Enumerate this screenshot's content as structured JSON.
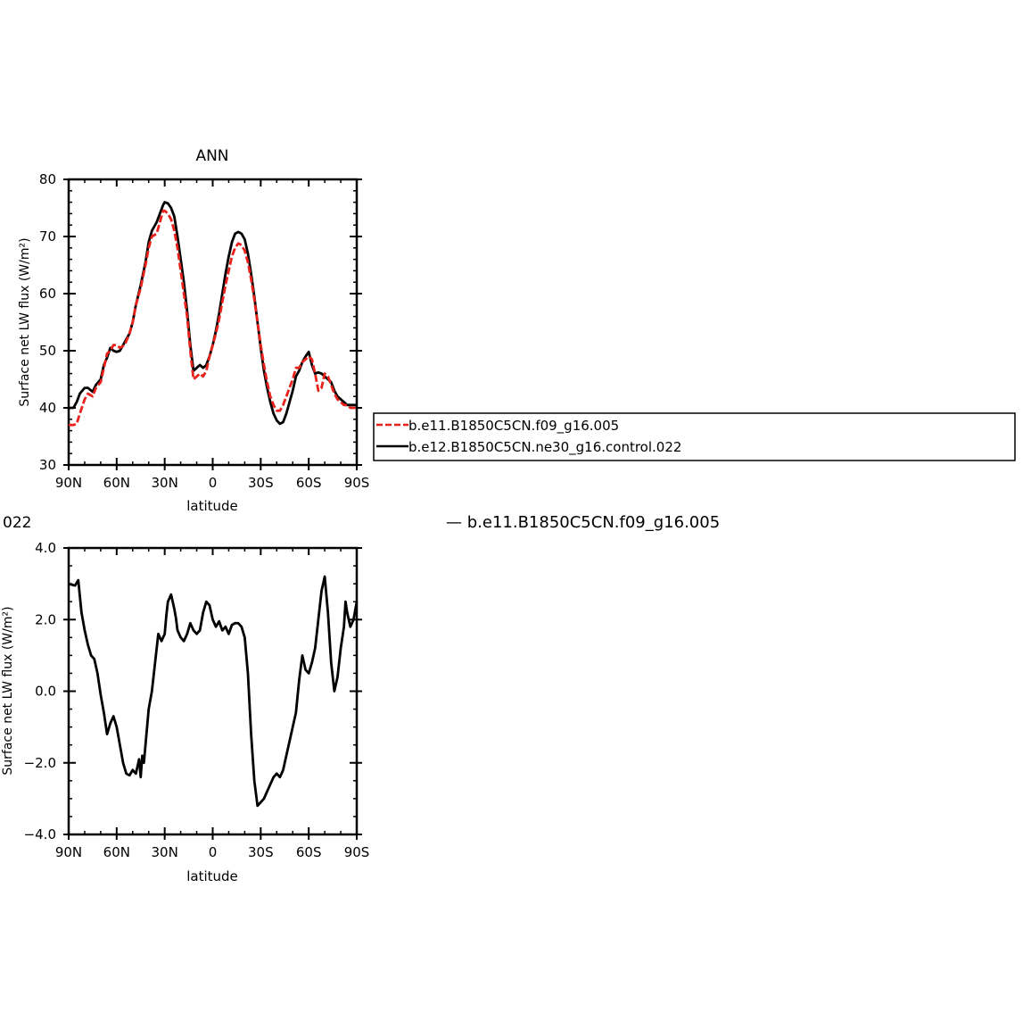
{
  "colors": {
    "control": "#000000",
    "case": "#e8211b"
  },
  "legend": {
    "items": [
      {
        "label": "b.e11.B1850C5CN.f09_g16.005",
        "style": "dashed-red"
      },
      {
        "label": "b.e12.B1850C5CN.ne30_g16.control.022",
        "style": "solid-black"
      }
    ]
  },
  "fragments": {
    "left_clipped": "022",
    "right_clipped_legend": "— b.e11.B1850C5CN.f09_g16.005"
  },
  "chart_data": [
    {
      "type": "line",
      "title": "ANN",
      "xlabel": "latitude",
      "ylabel": "Surface net LW flux (W/m²)",
      "xlim": [
        90,
        -90
      ],
      "ylim": [
        30,
        80
      ],
      "x_tick_labels": [
        "90N",
        "60N",
        "30N",
        "0",
        "30S",
        "60S",
        "90S"
      ],
      "y_tick_labels": [
        "80",
        "70",
        "60",
        "50",
        "40",
        "30"
      ],
      "x": [
        90,
        87,
        85,
        83,
        80,
        78,
        75,
        73,
        70,
        68,
        66,
        64,
        62,
        60,
        58,
        55,
        52,
        50,
        48,
        45,
        42,
        40,
        38,
        35,
        33,
        31,
        30,
        28,
        26,
        24,
        22,
        20,
        18,
        16,
        14,
        12,
        10,
        8,
        6,
        4,
        2,
        0,
        -2,
        -4,
        -6,
        -8,
        -10,
        -12,
        -14,
        -16,
        -18,
        -20,
        -22,
        -24,
        -26,
        -28,
        -30,
        -32,
        -34,
        -36,
        -38,
        -40,
        -42,
        -44,
        -46,
        -48,
        -50,
        -52,
        -54,
        -56,
        -58,
        -60,
        -62,
        -64,
        -66,
        -68,
        -70,
        -72,
        -74,
        -76,
        -78,
        -80,
        -82,
        -84,
        -86,
        -88,
        -90
      ],
      "series": [
        {
          "name": "b.e11.B1850C5CN.f09_g16.005",
          "style": "dashed-red",
          "values": [
            37.0,
            37.0,
            37.2,
            39.0,
            41.5,
            42.5,
            42.0,
            43.5,
            44.5,
            47.0,
            49.5,
            50.0,
            51.0,
            51.0,
            50.5,
            51.0,
            53.0,
            55.0,
            58.0,
            61.0,
            65.0,
            68.0,
            70.0,
            70.5,
            72.5,
            74.5,
            74.5,
            74.0,
            73.0,
            71.0,
            68.0,
            64.0,
            60.0,
            56.0,
            50.0,
            45.0,
            45.5,
            46.0,
            45.5,
            46.5,
            49.0,
            51.0,
            53.0,
            55.5,
            58.5,
            61.5,
            64.0,
            66.5,
            68.0,
            68.8,
            68.5,
            67.5,
            65.5,
            62.5,
            59.0,
            55.0,
            51.0,
            47.5,
            44.5,
            42.0,
            40.5,
            39.5,
            39.5,
            40.5,
            42.0,
            43.5,
            45.0,
            47.0,
            47.0,
            48.0,
            48.5,
            49.0,
            48.5,
            46.0,
            43.0,
            43.5,
            46.0,
            45.5,
            44.0,
            42.5,
            41.5,
            41.0,
            40.5,
            40.5,
            40.0,
            40.0,
            40.0
          ]
        },
        {
          "name": "b.e12.B1850C5CN.ne30_g16.control.022",
          "style": "solid-black",
          "values": [
            40.0,
            40.0,
            41.0,
            42.5,
            43.5,
            43.5,
            42.8,
            44.0,
            45.0,
            47.5,
            48.8,
            50.5,
            50.0,
            49.8,
            50.0,
            51.5,
            53.0,
            55.0,
            58.0,
            61.5,
            65.5,
            69.0,
            71.0,
            72.5,
            74.0,
            75.5,
            76.0,
            75.8,
            75.0,
            73.5,
            70.0,
            66.0,
            62.0,
            57.0,
            51.0,
            46.5,
            47.0,
            47.5,
            47.0,
            47.5,
            49.0,
            51.0,
            53.5,
            56.5,
            60.0,
            63.5,
            66.5,
            69.0,
            70.5,
            70.8,
            70.5,
            69.5,
            67.0,
            63.5,
            59.5,
            55.0,
            50.5,
            46.5,
            43.5,
            41.0,
            39.0,
            37.8,
            37.2,
            37.5,
            39.0,
            41.0,
            43.0,
            45.5,
            46.5,
            48.0,
            49.0,
            49.8,
            47.5,
            46.0,
            46.2,
            46.0,
            45.5,
            45.0,
            44.5,
            43.0,
            42.0,
            41.5,
            41.0,
            40.5,
            40.5,
            40.5,
            40.5
          ]
        }
      ]
    },
    {
      "type": "line",
      "title": "",
      "xlabel": "latitude",
      "ylabel": "Surface net LW flux (W/m²)",
      "xlim": [
        90,
        -90
      ],
      "ylim": [
        -4.0,
        4.0
      ],
      "x_tick_labels": [
        "90N",
        "60N",
        "30N",
        "0",
        "30S",
        "60S",
        "90S"
      ],
      "y_tick_labels": [
        "4.0",
        "2.0",
        "0.0",
        "−2.0",
        "−4.0"
      ],
      "x": [
        90,
        86,
        84,
        82,
        80,
        78,
        76,
        74,
        72,
        70,
        68,
        66,
        64,
        62,
        60,
        58,
        56,
        54,
        52,
        50,
        48,
        46,
        45,
        44,
        43,
        42,
        40,
        38,
        36,
        34,
        32,
        30,
        29,
        28,
        26,
        24,
        23,
        22,
        20,
        18,
        16,
        14,
        12,
        10,
        8,
        6,
        4,
        2,
        0,
        -2,
        -4,
        -6,
        -8,
        -10,
        -12,
        -14,
        -16,
        -18,
        -20,
        -22,
        -24,
        -26,
        -28,
        -30,
        -32,
        -34,
        -36,
        -38,
        -40,
        -42,
        -44,
        -46,
        -48,
        -50,
        -52,
        -54,
        -56,
        -58,
        -60,
        -62,
        -64,
        -66,
        -68,
        -70,
        -72,
        -74,
        -76,
        -78,
        -80,
        -82,
        -83,
        -84,
        -86,
        -88,
        -90
      ],
      "series": [
        {
          "name": "",
          "style": "solid-black",
          "values": [
            3.0,
            2.95,
            3.1,
            2.2,
            1.7,
            1.3,
            1.0,
            0.9,
            0.5,
            -0.1,
            -0.6,
            -1.2,
            -0.9,
            -0.7,
            -1.0,
            -1.5,
            -2.0,
            -2.3,
            -2.35,
            -2.2,
            -2.3,
            -1.9,
            -2.4,
            -1.8,
            -2.0,
            -1.5,
            -0.5,
            0.0,
            0.8,
            1.6,
            1.4,
            1.6,
            2.1,
            2.5,
            2.7,
            2.3,
            2.05,
            1.7,
            1.5,
            1.4,
            1.6,
            1.9,
            1.7,
            1.6,
            1.7,
            2.2,
            2.5,
            2.4,
            2.0,
            1.8,
            1.95,
            1.7,
            1.8,
            1.6,
            1.85,
            1.9,
            1.9,
            1.8,
            1.5,
            0.5,
            -1.2,
            -2.5,
            -3.2,
            -3.1,
            -3.0,
            -2.8,
            -2.6,
            -2.4,
            -2.3,
            -2.4,
            -2.2,
            -1.8,
            -1.4,
            -1.0,
            -0.6,
            0.3,
            1.0,
            0.6,
            0.5,
            0.8,
            1.2,
            2.0,
            2.8,
            3.2,
            2.2,
            0.8,
            0.0,
            0.4,
            1.2,
            1.8,
            2.5,
            2.2,
            1.8,
            2.0,
            2.5
          ]
        }
      ]
    }
  ]
}
